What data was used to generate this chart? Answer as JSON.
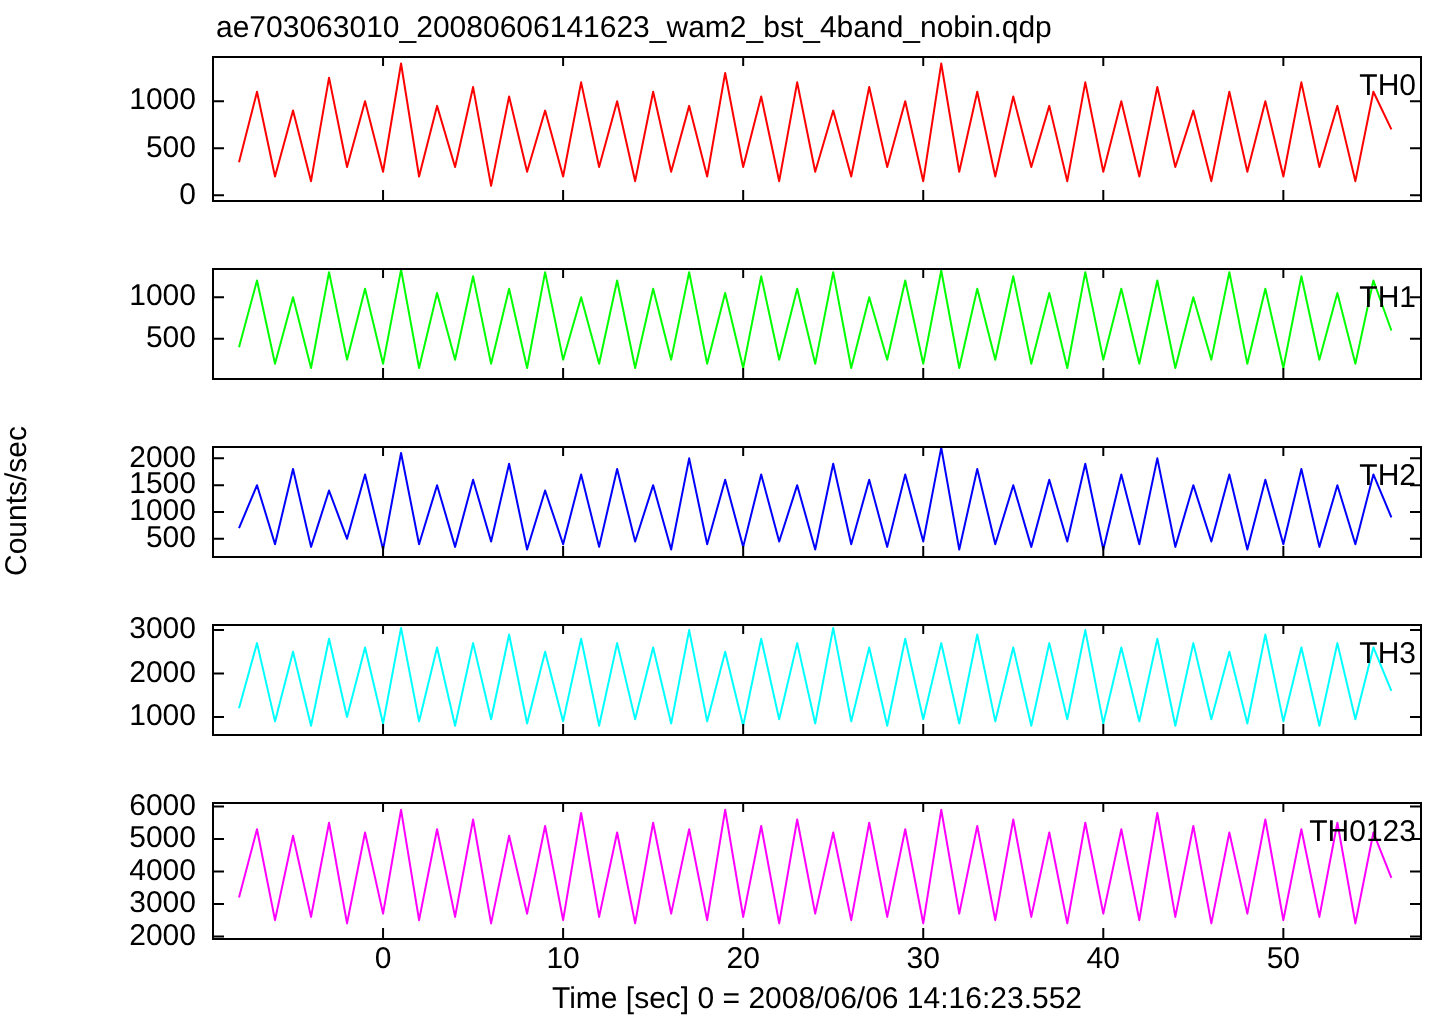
{
  "chart_data": [
    {
      "type": "line",
      "title": "ae703063010_20080606141623_wam2_bst_4band_nobin.qdp",
      "tick_labels": "y",
      "x": [
        -8,
        -7,
        -6,
        -5,
        -4,
        -3,
        -2,
        -1,
        0,
        1,
        2,
        3,
        4,
        5,
        6,
        7,
        8,
        9,
        10,
        11,
        12,
        13,
        14,
        15,
        16,
        17,
        18,
        19,
        20,
        21,
        22,
        23,
        24,
        25,
        26,
        27,
        28,
        29,
        30,
        31,
        32,
        33,
        34,
        35,
        36,
        37,
        38,
        39,
        40,
        41,
        42,
        43,
        44,
        45,
        46,
        47,
        48,
        49,
        50,
        51,
        52,
        53,
        54,
        55,
        56
      ],
      "xlim": [
        -9.5,
        57.7
      ],
      "xticks": [
        0,
        10,
        20,
        30,
        40,
        50
      ],
      "ylim": [
        -50,
        1480
      ],
      "yticks": [
        0,
        500,
        1000
      ],
      "series": [
        {
          "name": "TH0",
          "color": "#ff0000",
          "values": [
            350,
            1100,
            200,
            900,
            150,
            1250,
            300,
            1000,
            250,
            1400,
            200,
            950,
            300,
            1150,
            100,
            1050,
            250,
            900,
            200,
            1200,
            300,
            1000,
            150,
            1100,
            250,
            950,
            200,
            1300,
            300,
            1050,
            150,
            1200,
            250,
            900,
            200,
            1150,
            300,
            1000,
            150,
            1400,
            250,
            1100,
            200,
            1050,
            300,
            950,
            150,
            1200,
            250,
            1000,
            200,
            1150,
            300,
            900,
            150,
            1100,
            250,
            1000,
            200,
            1200,
            300,
            950,
            150,
            1100,
            700
          ]
        }
      ]
    },
    {
      "type": "line",
      "tick_labels": "y",
      "x": [
        -8,
        -7,
        -6,
        -5,
        -4,
        -3,
        -2,
        -1,
        0,
        1,
        2,
        3,
        4,
        5,
        6,
        7,
        8,
        9,
        10,
        11,
        12,
        13,
        14,
        15,
        16,
        17,
        18,
        19,
        20,
        21,
        22,
        23,
        24,
        25,
        26,
        27,
        28,
        29,
        30,
        31,
        32,
        33,
        34,
        35,
        36,
        37,
        38,
        39,
        40,
        41,
        42,
        43,
        44,
        45,
        46,
        47,
        48,
        49,
        50,
        51,
        52,
        53,
        54,
        55,
        56
      ],
      "xlim": [
        -9.5,
        57.7
      ],
      "xticks": [
        0,
        10,
        20,
        30,
        40,
        50
      ],
      "ylim": [
        30,
        1350
      ],
      "yticks": [
        500,
        1000
      ],
      "series": [
        {
          "name": "TH1",
          "color": "#00ff00",
          "values": [
            400,
            1200,
            200,
            1000,
            150,
            1300,
            250,
            1100,
            200,
            1330,
            150,
            1050,
            250,
            1250,
            200,
            1100,
            150,
            1300,
            250,
            1000,
            200,
            1200,
            150,
            1100,
            250,
            1300,
            200,
            1050,
            150,
            1250,
            250,
            1100,
            200,
            1300,
            150,
            1000,
            250,
            1200,
            200,
            1320,
            150,
            1100,
            250,
            1250,
            200,
            1050,
            150,
            1300,
            250,
            1100,
            200,
            1200,
            150,
            1000,
            250,
            1300,
            200,
            1100,
            150,
            1250,
            250,
            1050,
            200,
            1200,
            600
          ]
        }
      ]
    },
    {
      "type": "line",
      "ylabel": "Counts/sec",
      "tick_labels": "y",
      "x": [
        -8,
        -7,
        -6,
        -5,
        -4,
        -3,
        -2,
        -1,
        0,
        1,
        2,
        3,
        4,
        5,
        6,
        7,
        8,
        9,
        10,
        11,
        12,
        13,
        14,
        15,
        16,
        17,
        18,
        19,
        20,
        21,
        22,
        23,
        24,
        25,
        26,
        27,
        28,
        29,
        30,
        31,
        32,
        33,
        34,
        35,
        36,
        37,
        38,
        39,
        40,
        41,
        42,
        43,
        44,
        45,
        46,
        47,
        48,
        49,
        50,
        51,
        52,
        53,
        54,
        55,
        56
      ],
      "xlim": [
        -9.5,
        57.7
      ],
      "xticks": [
        0,
        10,
        20,
        30,
        40,
        50
      ],
      "ylim": [
        180,
        2230
      ],
      "yticks": [
        500,
        1000,
        1500,
        2000
      ],
      "series": [
        {
          "name": "TH2",
          "color": "#0000ff",
          "values": [
            700,
            1500,
            400,
            1800,
            350,
            1400,
            500,
            1700,
            300,
            2100,
            400,
            1500,
            350,
            1600,
            450,
            1900,
            300,
            1400,
            400,
            1700,
            350,
            1800,
            450,
            1500,
            300,
            2000,
            400,
            1600,
            350,
            1700,
            450,
            1500,
            300,
            1900,
            400,
            1600,
            350,
            1700,
            450,
            2200,
            300,
            1800,
            400,
            1500,
            350,
            1600,
            450,
            1900,
            300,
            1700,
            400,
            2000,
            350,
            1500,
            450,
            1700,
            300,
            1600,
            400,
            1800,
            350,
            1500,
            400,
            1700,
            900
          ]
        }
      ]
    },
    {
      "type": "line",
      "tick_labels": "y",
      "x": [
        -8,
        -7,
        -6,
        -5,
        -4,
        -3,
        -2,
        -1,
        0,
        1,
        2,
        3,
        4,
        5,
        6,
        7,
        8,
        9,
        10,
        11,
        12,
        13,
        14,
        15,
        16,
        17,
        18,
        19,
        20,
        21,
        22,
        23,
        24,
        25,
        26,
        27,
        28,
        29,
        30,
        31,
        32,
        33,
        34,
        35,
        36,
        37,
        38,
        39,
        40,
        41,
        42,
        43,
        44,
        45,
        46,
        47,
        48,
        49,
        50,
        51,
        52,
        53,
        54,
        55,
        56
      ],
      "xlim": [
        -9.5,
        57.7
      ],
      "xticks": [
        0,
        10,
        20,
        30,
        40,
        50
      ],
      "ylim": [
        610,
        3140
      ],
      "yticks": [
        1000,
        2000,
        3000
      ],
      "series": [
        {
          "name": "TH3",
          "color": "#00ffff",
          "values": [
            1200,
            2700,
            900,
            2500,
            800,
            2800,
            1000,
            2600,
            850,
            3050,
            900,
            2600,
            800,
            2700,
            950,
            2900,
            850,
            2500,
            900,
            2800,
            800,
            2700,
            950,
            2600,
            850,
            3000,
            900,
            2500,
            800,
            2800,
            950,
            2700,
            850,
            3050,
            900,
            2600,
            800,
            2800,
            950,
            2700,
            850,
            2900,
            900,
            2600,
            800,
            2700,
            950,
            3000,
            850,
            2600,
            900,
            2800,
            800,
            2700,
            950,
            2500,
            850,
            2900,
            900,
            2600,
            800,
            2700,
            950,
            2600,
            1600
          ]
        }
      ]
    },
    {
      "type": "line",
      "xlabel": "Time [sec] 0 = 2008/06/06 14:16:23.552",
      "x": [
        -8,
        -7,
        -6,
        -5,
        -4,
        -3,
        -2,
        -1,
        0,
        1,
        2,
        3,
        4,
        5,
        6,
        7,
        8,
        9,
        10,
        11,
        12,
        13,
        14,
        15,
        16,
        17,
        18,
        19,
        20,
        21,
        22,
        23,
        24,
        25,
        26,
        27,
        28,
        29,
        30,
        31,
        32,
        33,
        34,
        35,
        36,
        37,
        38,
        39,
        40,
        41,
        42,
        43,
        44,
        45,
        46,
        47,
        48,
        49,
        50,
        51,
        52,
        53,
        54,
        55,
        56
      ],
      "xlim": [
        -9.5,
        57.7
      ],
      "xticks": [
        0,
        10,
        20,
        30,
        40,
        50
      ],
      "ylim": [
        1950,
        6140
      ],
      "yticks": [
        2000,
        3000,
        4000,
        5000,
        6000
      ],
      "series": [
        {
          "name": "TH0123",
          "color": "#ff00ff",
          "values": [
            3200,
            5300,
            2500,
            5100,
            2600,
            5500,
            2400,
            5200,
            2700,
            5900,
            2500,
            5300,
            2600,
            5600,
            2400,
            5100,
            2700,
            5400,
            2500,
            5800,
            2600,
            5200,
            2400,
            5500,
            2700,
            5300,
            2500,
            5900,
            2600,
            5400,
            2400,
            5600,
            2700,
            5200,
            2500,
            5500,
            2600,
            5300,
            2400,
            5900,
            2700,
            5400,
            2500,
            5600,
            2600,
            5200,
            2400,
            5500,
            2700,
            5300,
            2500,
            5800,
            2600,
            5400,
            2400,
            5200,
            2700,
            5600,
            2500,
            5300,
            2600,
            5500,
            2400,
            5200,
            3800
          ]
        }
      ]
    }
  ]
}
